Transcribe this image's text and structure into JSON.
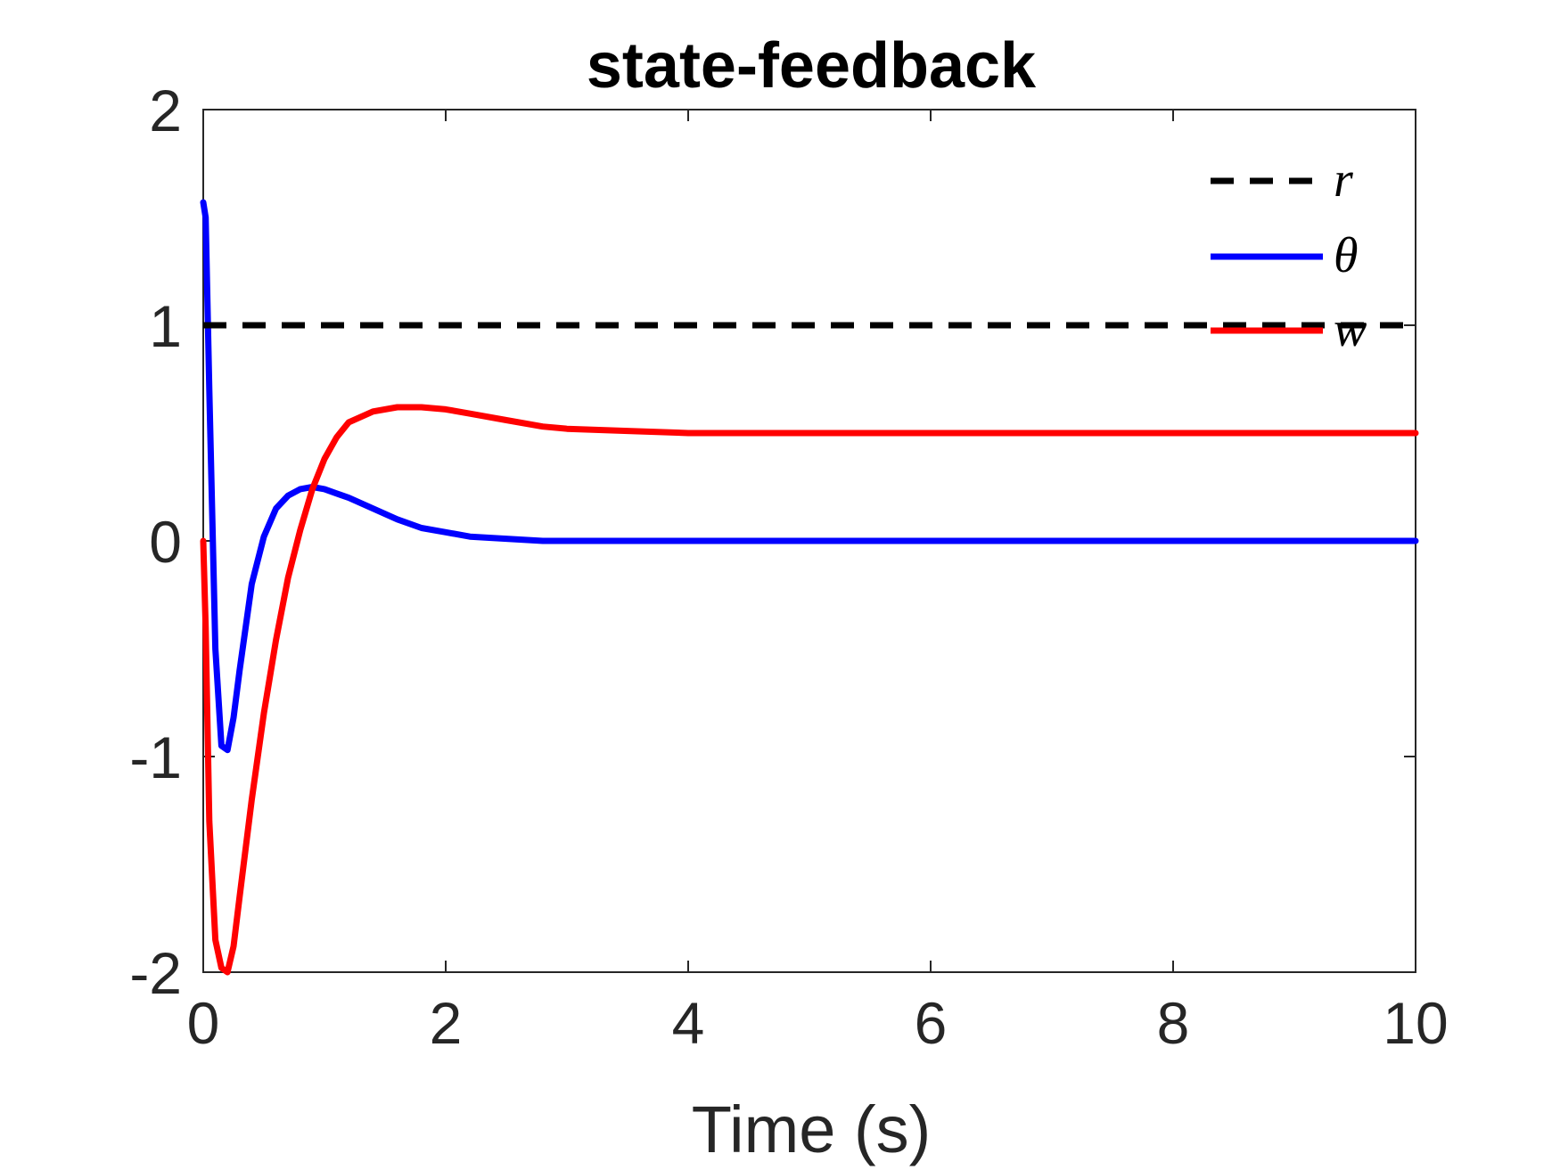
{
  "chart_data": {
    "type": "line",
    "title": "state-feedback",
    "xlabel": "Time (s)",
    "ylabel": "",
    "xlim": [
      0,
      10
    ],
    "ylim": [
      -2,
      2
    ],
    "xticks": [
      0,
      2,
      4,
      6,
      8,
      10
    ],
    "yticks": [
      -2,
      -1,
      0,
      1,
      2
    ],
    "xtick_labels": [
      "0",
      "2",
      "4",
      "6",
      "8",
      "10"
    ],
    "ytick_labels": [
      "-2",
      "-1",
      "0",
      "1",
      "2"
    ],
    "grid": false,
    "legend_position": "top-right",
    "series": [
      {
        "name": "r",
        "color": "#000000",
        "style": "dashed",
        "x": [
          0,
          10
        ],
        "y": [
          1,
          1
        ]
      },
      {
        "name": "θ",
        "color": "#0000ff",
        "style": "solid",
        "x": [
          0,
          0.02,
          0.05,
          0.1,
          0.15,
          0.2,
          0.25,
          0.3,
          0.4,
          0.5,
          0.6,
          0.7,
          0.8,
          0.9,
          1.0,
          1.1,
          1.2,
          1.4,
          1.6,
          1.8,
          2.0,
          2.2,
          2.5,
          2.8,
          3.0,
          3.5,
          4.0,
          5.0,
          6.0,
          7.0,
          8.0,
          9.0,
          10.0
        ],
        "y": [
          1.57,
          1.5,
          0.7,
          -0.5,
          -0.95,
          -0.97,
          -0.82,
          -0.6,
          -0.2,
          0.02,
          0.15,
          0.21,
          0.24,
          0.25,
          0.24,
          0.22,
          0.2,
          0.15,
          0.1,
          0.06,
          0.04,
          0.02,
          0.01,
          0.0,
          0.0,
          0.0,
          0.0,
          0.0,
          0.0,
          0.0,
          0.0,
          0.0,
          0.0
        ]
      },
      {
        "name": "w",
        "color": "#ff0000",
        "style": "solid",
        "x": [
          0,
          0.02,
          0.05,
          0.1,
          0.15,
          0.2,
          0.25,
          0.3,
          0.4,
          0.5,
          0.6,
          0.7,
          0.8,
          0.9,
          1.0,
          1.1,
          1.2,
          1.4,
          1.6,
          1.8,
          2.0,
          2.2,
          2.5,
          2.8,
          3.0,
          3.5,
          4.0,
          5.0,
          6.0,
          7.0,
          8.0,
          9.0,
          10.0
        ],
        "y": [
          0.0,
          -0.4,
          -1.3,
          -1.85,
          -1.98,
          -2.0,
          -1.88,
          -1.65,
          -1.2,
          -0.8,
          -0.46,
          -0.17,
          0.05,
          0.24,
          0.38,
          0.48,
          0.55,
          0.6,
          0.62,
          0.62,
          0.61,
          0.59,
          0.56,
          0.53,
          0.52,
          0.51,
          0.5,
          0.5,
          0.5,
          0.5,
          0.5,
          0.5,
          0.5
        ]
      }
    ]
  },
  "legend": {
    "labels": [
      "r",
      "θ",
      "w"
    ]
  }
}
